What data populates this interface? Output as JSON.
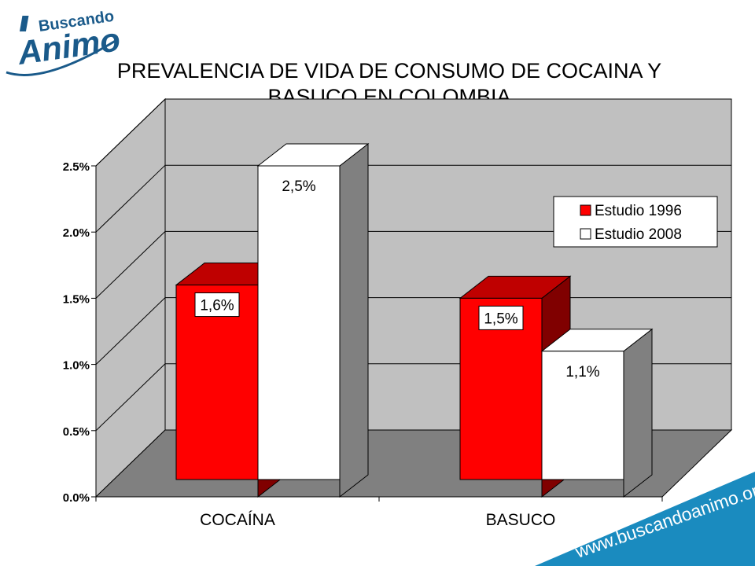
{
  "logo": {
    "top_text": "Buscando",
    "main_text": "Animo"
  },
  "footer": {
    "url": "www.buscandoanimo.org"
  },
  "colors": {
    "series_1996": "#ff0000",
    "series_2008": "#ffffff",
    "wall": "#c0c0c0",
    "floor": "#808080",
    "accent": "#1a8bbf"
  },
  "chart_data": {
    "type": "bar",
    "title_lines": [
      "PREVALENCIA DE VIDA DE CONSUMO DE COCAINA Y",
      "BASUCO EN COLOMBIA"
    ],
    "categories": [
      "COCAÍNA",
      "BASUCO"
    ],
    "series": [
      {
        "name": "Estudio 1996",
        "values": [
          1.6,
          1.5
        ],
        "labels": [
          "1,6%",
          "1,5%"
        ],
        "color": "#ff0000"
      },
      {
        "name": "Estudio 2008",
        "values": [
          2.5,
          1.1
        ],
        "labels": [
          "2,5%",
          "1,1%"
        ],
        "color": "#ffffff"
      }
    ],
    "ylim": [
      0,
      2.5
    ],
    "yticks": [
      "0.0%",
      "0.5%",
      "1.0%",
      "1.5%",
      "2.0%",
      "2.5%"
    ],
    "grid": true,
    "legend_position": "right",
    "three_d": true
  }
}
